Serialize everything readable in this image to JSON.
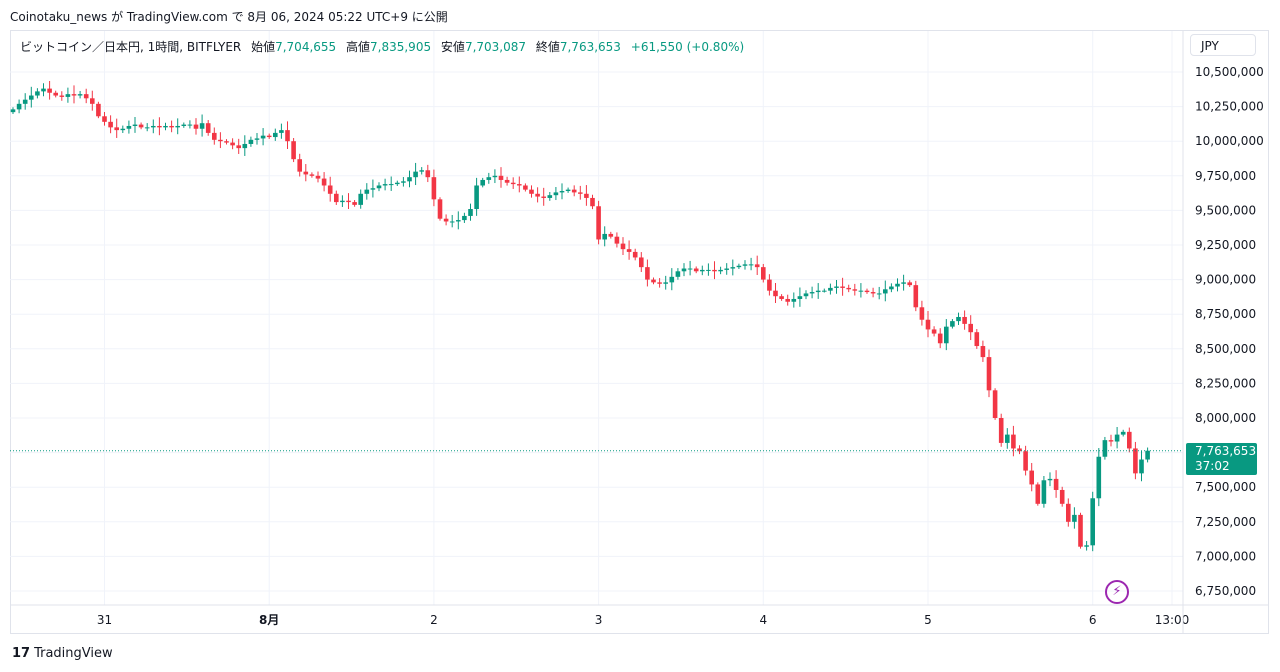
{
  "header": {
    "published_by": "Coinotaku_news が TradingView.com で 8月 06, 2024 05:22 UTC+9 に公開"
  },
  "legend": {
    "symbol": "ビットコイン／日本円, 1時間, BITFLYER",
    "open_label": "始値",
    "open": "7,704,655",
    "high_label": "高値",
    "high": "7,835,905",
    "low_label": "安値",
    "low": "7,703,087",
    "close_label": "終値",
    "close": "7,763,653",
    "change": "+61,550 (+0.80%)"
  },
  "currency_button": "JPY",
  "price_tag": {
    "price": "7,763,653",
    "countdown": "37:02"
  },
  "footer": {
    "logo_mark": "17",
    "brand": "TradingView"
  },
  "colors": {
    "up": "#089981",
    "down": "#f23645",
    "grid": "#f0f3fa",
    "accent": "#9c27b0"
  },
  "icons": {
    "alert": "lightning-bolt-icon"
  },
  "chart_data": {
    "type": "candlestick",
    "title": "ビットコイン／日本円, 1時間, BITFLYER",
    "ylim": [
      6750000,
      10750000
    ],
    "y_ticks": [
      6750000,
      7000000,
      7250000,
      7500000,
      7750000,
      8000000,
      8250000,
      8500000,
      8750000,
      9000000,
      9250000,
      9500000,
      9750000,
      10000000,
      10250000,
      10500000
    ],
    "y_tick_labels": [
      "6,750,000",
      "7,000,000",
      "7,250,000",
      "7,500,000",
      "7,750,000",
      "8,000,000",
      "8,250,000",
      "8,500,000",
      "8,750,000",
      "9,000,000",
      "9,250,000",
      "9,500,000",
      "9,750,000",
      "10,000,000",
      "10,250,000",
      "10,500,000"
    ],
    "x_tick_labels": [
      {
        "label": "31",
        "index": 15
      },
      {
        "label": "8月",
        "index": 42
      },
      {
        "label": "2",
        "index": 69
      },
      {
        "label": "3",
        "index": 96
      },
      {
        "label": "4",
        "index": 123
      },
      {
        "label": "5",
        "index": 150
      },
      {
        "label": "6",
        "index": 177
      },
      {
        "label": "13:00",
        "index": 190
      }
    ],
    "last_price": 7763653,
    "close_path": [
      10230000,
      10270000,
      10300000,
      10330000,
      10360000,
      10380000,
      10350000,
      10330000,
      10320000,
      10340000,
      10330000,
      10340000,
      10310000,
      10270000,
      10180000,
      10140000,
      10100000,
      10080000,
      10090000,
      10110000,
      10120000,
      10100000,
      10100000,
      10110000,
      10100000,
      10110000,
      10100000,
      10110000,
      10120000,
      10120000,
      10090000,
      10130000,
      10060000,
      10010000,
      10000000,
      9990000,
      9970000,
      9950000,
      9980000,
      10010000,
      10020000,
      10040000,
      10030000,
      10060000,
      10080000,
      10000000,
      9870000,
      9780000,
      9760000,
      9750000,
      9730000,
      9680000,
      9620000,
      9560000,
      9570000,
      9560000,
      9540000,
      9620000,
      9650000,
      9660000,
      9680000,
      9690000,
      9690000,
      9700000,
      9710000,
      9740000,
      9780000,
      9790000,
      9740000,
      9580000,
      9440000,
      9420000,
      9420000,
      9430000,
      9460000,
      9510000,
      9680000,
      9720000,
      9740000,
      9750000,
      9720000,
      9700000,
      9690000,
      9680000,
      9650000,
      9620000,
      9600000,
      9590000,
      9610000,
      9630000,
      9640000,
      9650000,
      9630000,
      9620000,
      9590000,
      9530000,
      9290000,
      9330000,
      9310000,
      9260000,
      9220000,
      9200000,
      9160000,
      9090000,
      9000000,
      8980000,
      8970000,
      8980000,
      9020000,
      9060000,
      9080000,
      9080000,
      9060000,
      9070000,
      9070000,
      9060000,
      9070000,
      9080000,
      9090000,
      9100000,
      9110000,
      9110000,
      9090000,
      9000000,
      8920000,
      8880000,
      8860000,
      8840000,
      8860000,
      8880000,
      8900000,
      8910000,
      8920000,
      8920000,
      8940000,
      8950000,
      8940000,
      8930000,
      8920000,
      8920000,
      8910000,
      8900000,
      8900000,
      8930000,
      8950000,
      8970000,
      8980000,
      8960000,
      8800000,
      8710000,
      8640000,
      8610000,
      8540000,
      8660000,
      8700000,
      8730000,
      8680000,
      8620000,
      8520000,
      8440000,
      8200000,
      8000000,
      7820000,
      7880000,
      7780000,
      7760000,
      7620000,
      7520000,
      7380000,
      7550000,
      7560000,
      7480000,
      7380000,
      7250000,
      7300000,
      7070000,
      7080000,
      7420000,
      7720000,
      7840000,
      7830000,
      7880000,
      7900000,
      7780000,
      7600000,
      7700000,
      7763653
    ]
  }
}
